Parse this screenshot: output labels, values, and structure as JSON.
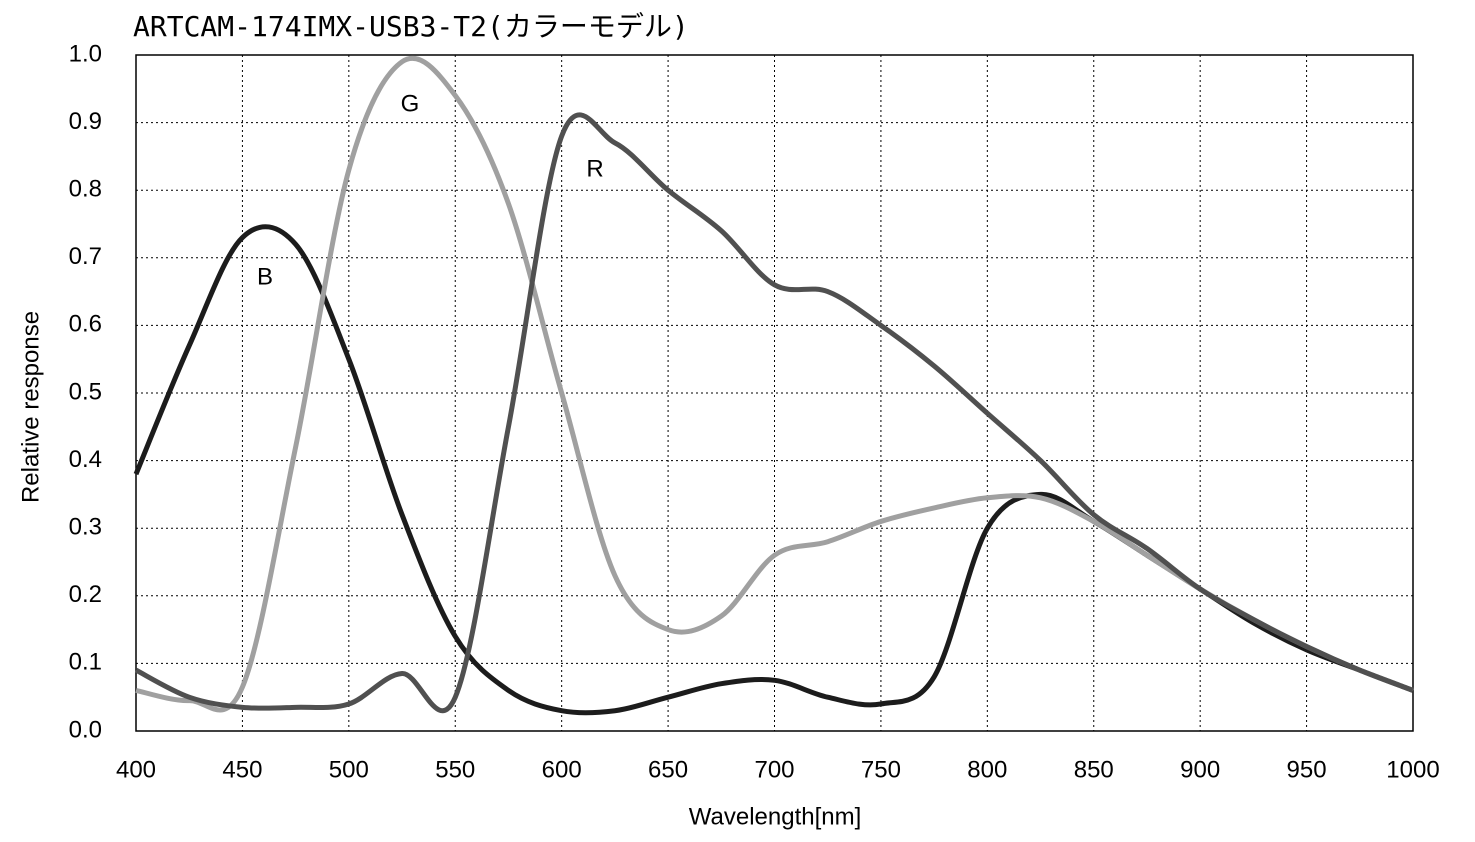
{
  "chart_data": {
    "type": "line",
    "title": "ARTCAM-174IMX-USB3-T2(カラーモデル)",
    "x_label": "Wavelength[nm]",
    "y_label": "Relative response",
    "x": [
      400,
      425,
      450,
      475,
      500,
      525,
      550,
      575,
      600,
      625,
      650,
      675,
      700,
      725,
      750,
      775,
      800,
      825,
      850,
      875,
      900,
      925,
      950,
      975,
      1000
    ],
    "series": [
      {
        "name": "B",
        "color": "#1c1c1c",
        "values": [
          0.38,
          0.57,
          0.73,
          0.72,
          0.55,
          0.32,
          0.14,
          0.06,
          0.03,
          0.03,
          0.05,
          0.07,
          0.075,
          0.05,
          0.04,
          0.08,
          0.3,
          0.35,
          0.31,
          0.26,
          0.21,
          0.16,
          0.12,
          0.09,
          0.06
        ]
      },
      {
        "name": "G",
        "color": "#a0a0a0",
        "values": [
          0.06,
          0.045,
          0.065,
          0.42,
          0.83,
          0.99,
          0.94,
          0.78,
          0.5,
          0.23,
          0.15,
          0.17,
          0.26,
          0.28,
          0.31,
          0.33,
          0.345,
          0.345,
          0.31,
          0.26,
          0.21,
          0.165,
          0.125,
          0.09,
          0.06
        ]
      },
      {
        "name": "R",
        "color": "#505050",
        "values": [
          0.09,
          0.05,
          0.035,
          0.035,
          0.04,
          0.085,
          0.05,
          0.45,
          0.88,
          0.87,
          0.8,
          0.74,
          0.66,
          0.65,
          0.6,
          0.54,
          0.47,
          0.4,
          0.32,
          0.27,
          0.21,
          0.165,
          0.125,
          0.09,
          0.06
        ]
      }
    ],
    "xlim": [
      400,
      1000
    ],
    "xticks": [
      400,
      450,
      500,
      550,
      600,
      650,
      700,
      750,
      800,
      850,
      900,
      950,
      1000
    ],
    "ylim": [
      0,
      1
    ],
    "yticks": [
      {
        "value": 0,
        "label": "0.0"
      },
      0.1,
      0.2,
      0.3,
      0.4,
      0.5,
      0.6,
      0.7,
      0.8,
      0.9,
      {
        "value": 1,
        "label": "1.0"
      }
    ],
    "grid": true
  }
}
